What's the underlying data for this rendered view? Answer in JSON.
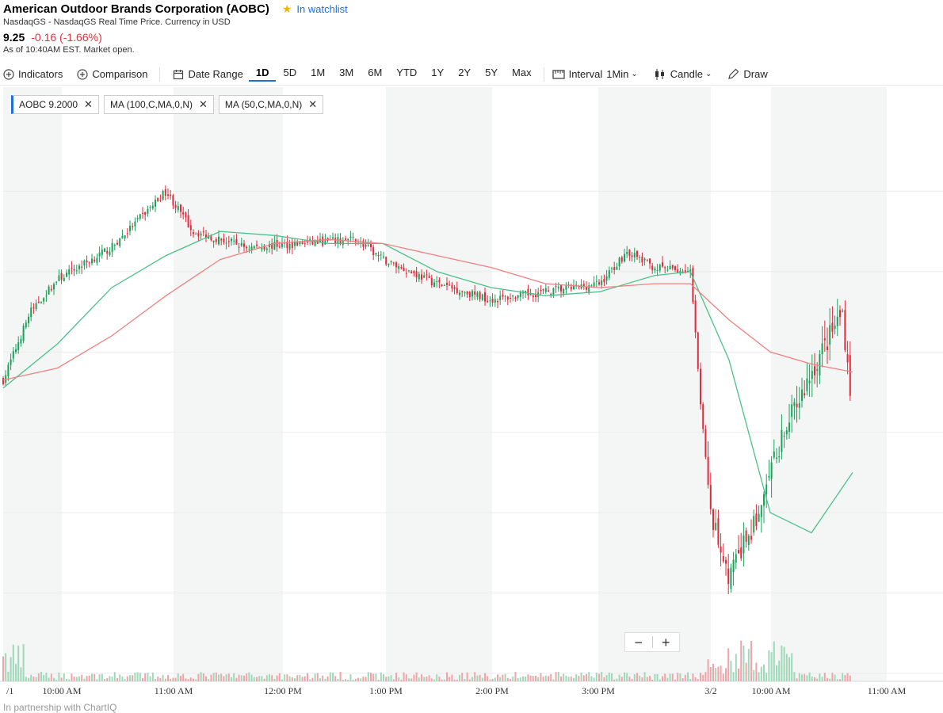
{
  "header": {
    "title": "American Outdoor Brands Corporation (AOBC)",
    "watchlist_label": "In watchlist",
    "exchange_info": "NasdaqGS - NasdaqGS Real Time Price. Currency in USD",
    "price": "9.25",
    "change": "-0.16 (-1.66%)",
    "as_of": "As of 10:40AM EST. Market open."
  },
  "toolbar": {
    "indicators": "Indicators",
    "comparison": "Comparison",
    "date_range": "Date Range",
    "ranges": [
      "1D",
      "5D",
      "1M",
      "3M",
      "6M",
      "YTD",
      "1Y",
      "2Y",
      "5Y",
      "Max"
    ],
    "active_range": "1D",
    "interval": "Interval",
    "interval_value": "1Min",
    "chart_type": "Candle",
    "draw": "Draw"
  },
  "legend_tags": {
    "main": "AOBC 9.2000",
    "ma100": "MA (100,C,MA,0,N)",
    "ma50": "MA (50,C,MA,0,N)"
  },
  "zoom": {
    "minus": "−",
    "plus": "+"
  },
  "footer": "In partnership with ChartIQ",
  "colors": {
    "up": "#1aa25a",
    "down": "#e5293a",
    "ma50": "#4cc08a",
    "ma100": "#f08080",
    "shade": "#f4f6f5",
    "accent": "#1e6fd9"
  },
  "chart_data": {
    "type": "candlestick",
    "ticker": "AOBC",
    "time_ticks": [
      "/1",
      "10:00 AM",
      "11:00 AM",
      "12:00 PM",
      "1:00 PM",
      "2:00 PM",
      "3:00 PM",
      "3/2",
      "10:00 AM",
      "11:00 AM"
    ],
    "ylim": [
      8.6,
      10.0
    ],
    "grid": true,
    "series": [
      {
        "name": "AOBC",
        "kind": "close",
        "x": [
          "3/1 9:30",
          "3/1 9:45",
          "3/1 10:00",
          "3/1 10:30",
          "3/1 11:00",
          "3/1 11:15",
          "3/1 11:45",
          "3/1 12:15",
          "3/1 12:45",
          "3/1 1:00",
          "3/1 1:30",
          "3/1 2:00",
          "3/1 2:30",
          "3/1 3:00",
          "3/1 3:15",
          "3/1 3:30",
          "3/1 3:50",
          "3/2 9:30",
          "3/2 9:40",
          "3/2 9:55",
          "3/2 10:05",
          "3/2 10:20",
          "3/2 10:35",
          "3/2 10:40"
        ],
        "y": [
          9.33,
          9.5,
          9.58,
          9.66,
          9.8,
          9.7,
          9.66,
          9.67,
          9.68,
          9.63,
          9.57,
          9.53,
          9.55,
          9.57,
          9.65,
          9.61,
          9.6,
          9.03,
          8.84,
          9.0,
          9.18,
          9.35,
          9.5,
          9.25
        ]
      },
      {
        "name": "MA (50,C,MA,0,N)",
        "kind": "ma50",
        "x": [
          "3/1 9:30",
          "3/1 10:00",
          "3/1 10:30",
          "3/1 11:00",
          "3/1 11:30",
          "3/1 12:00",
          "3/1 12:30",
          "3/1 1:00",
          "3/1 1:30",
          "3/1 2:00",
          "3/1 2:30",
          "3/1 3:00",
          "3/1 3:30",
          "3/1 3:50",
          "3/2 9:40",
          "3/2 10:00",
          "3/2 10:20",
          "3/2 10:40"
        ],
        "y": [
          9.31,
          9.42,
          9.56,
          9.64,
          9.7,
          9.69,
          9.67,
          9.67,
          9.6,
          9.56,
          9.54,
          9.55,
          9.59,
          9.6,
          9.38,
          9.0,
          8.95,
          9.1
        ]
      },
      {
        "name": "MA (100,C,MA,0,N)",
        "kind": "ma100",
        "x": [
          "3/1 9:30",
          "3/1 10:00",
          "3/1 10:30",
          "3/1 11:00",
          "3/1 11:30",
          "3/1 12:00",
          "3/1 12:30",
          "3/1 1:00",
          "3/1 1:30",
          "3/1 2:00",
          "3/1 2:30",
          "3/1 3:00",
          "3/1 3:30",
          "3/1 3:50",
          "3/2 9:40",
          "3/2 10:00",
          "3/2 10:20",
          "3/2 10:40"
        ],
        "y": [
          9.33,
          9.36,
          9.44,
          9.54,
          9.63,
          9.67,
          9.68,
          9.67,
          9.64,
          9.61,
          9.57,
          9.56,
          9.57,
          9.57,
          9.48,
          9.4,
          9.37,
          9.35
        ]
      }
    ]
  }
}
